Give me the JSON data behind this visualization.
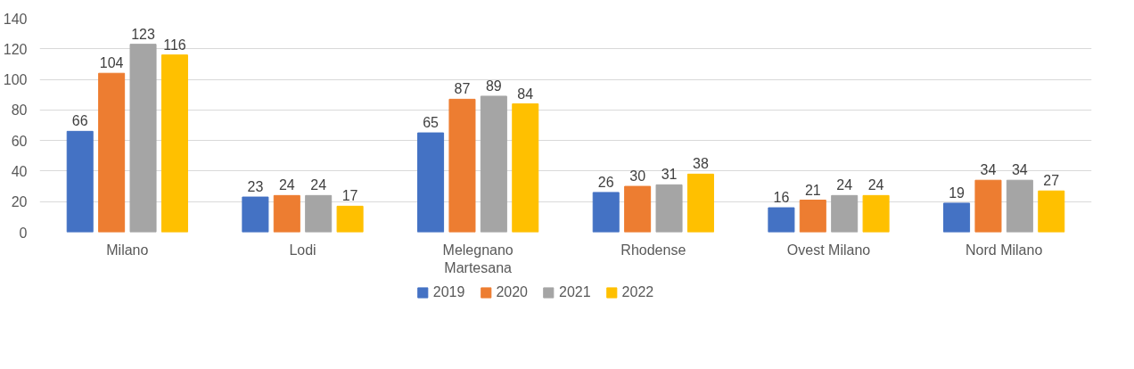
{
  "chart_data": {
    "type": "bar",
    "categories": [
      "Milano",
      "Lodi",
      "Melegnano Martesana",
      "Rhodense",
      "Ovest Milano",
      "Nord Milano"
    ],
    "series": [
      {
        "name": "2019",
        "color": "#4472c4",
        "values": [
          66,
          23,
          65,
          26,
          16,
          19
        ]
      },
      {
        "name": "2020",
        "color": "#ed7d31",
        "values": [
          104,
          24,
          87,
          30,
          21,
          34
        ]
      },
      {
        "name": "2021",
        "color": "#a5a5a5",
        "values": [
          123,
          24,
          89,
          31,
          24,
          34
        ]
      },
      {
        "name": "2022",
        "color": "#ffc000",
        "values": [
          116,
          17,
          84,
          38,
          24,
          27
        ]
      }
    ],
    "ylim": [
      0,
      140
    ],
    "yticks": [
      0,
      20,
      40,
      60,
      80,
      100,
      120,
      140
    ],
    "grid": "y",
    "legend": "bottom",
    "data_labels": true
  }
}
